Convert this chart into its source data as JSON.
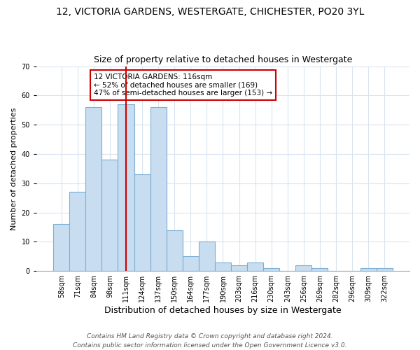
{
  "title": "12, VICTORIA GARDENS, WESTERGATE, CHICHESTER, PO20 3YL",
  "subtitle": "Size of property relative to detached houses in Westergate",
  "xlabel": "Distribution of detached houses by size in Westergate",
  "ylabel": "Number of detached properties",
  "bar_labels": [
    "58sqm",
    "71sqm",
    "84sqm",
    "98sqm",
    "111sqm",
    "124sqm",
    "137sqm",
    "150sqm",
    "164sqm",
    "177sqm",
    "190sqm",
    "203sqm",
    "216sqm",
    "230sqm",
    "243sqm",
    "256sqm",
    "269sqm",
    "282sqm",
    "296sqm",
    "309sqm",
    "322sqm"
  ],
  "bar_heights": [
    16,
    27,
    56,
    38,
    57,
    33,
    56,
    14,
    5,
    10,
    3,
    2,
    3,
    1,
    0,
    2,
    1,
    0,
    0,
    1,
    1
  ],
  "bar_face_color": "#c9ddf0",
  "bar_edge_color": "#7aadd4",
  "vline_bar_index": 4,
  "vline_color": "#cc0000",
  "annotation_text": "12 VICTORIA GARDENS: 116sqm\n← 52% of detached houses are smaller (169)\n47% of semi-detached houses are larger (153) →",
  "annotation_box_color": "#ffffff",
  "annotation_border_color": "#cc0000",
  "ylim": [
    0,
    70
  ],
  "yticks": [
    0,
    10,
    20,
    30,
    40,
    50,
    60,
    70
  ],
  "footer_line1": "Contains HM Land Registry data © Crown copyright and database right 2024.",
  "footer_line2": "Contains public sector information licensed under the Open Government Licence v3.0.",
  "bg_color": "#ffffff",
  "grid_color": "#d8e4f0",
  "title_fontsize": 10,
  "subtitle_fontsize": 9,
  "xlabel_fontsize": 9,
  "ylabel_fontsize": 8,
  "tick_fontsize": 7,
  "annot_fontsize": 7.5,
  "footer_fontsize": 6.5
}
